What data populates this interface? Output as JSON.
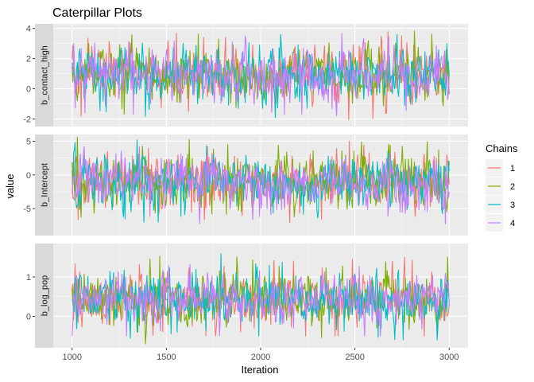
{
  "chart_data": {
    "type": "line",
    "title": "Caterpillar Plots",
    "xlabel": "Iteration",
    "ylabel": "value",
    "x_range": [
      1000,
      3000
    ],
    "xlim": [
      900,
      3100
    ],
    "x_ticks": [
      "1000",
      "1500",
      "2000",
      "2500",
      "3000"
    ],
    "grid": true,
    "legend": {
      "title": "Chains",
      "placement": "right",
      "entries": [
        {
          "label": "1",
          "color": "#F8766D"
        },
        {
          "label": "2",
          "color": "#7CAE00"
        },
        {
          "label": "3",
          "color": "#00BFC4"
        },
        {
          "label": "4",
          "color": "#C77CFF"
        }
      ]
    },
    "panels": [
      {
        "strip_label": "b_contact_high",
        "ylim": [
          -2.5,
          4.3
        ],
        "y_ticks": [
          -2,
          0,
          2,
          4
        ],
        "chain_stats": [
          {
            "chain": "1",
            "mean": 1.0,
            "sd": 0.85,
            "min": -2.2,
            "max": 4.1
          },
          {
            "chain": "2",
            "mean": 0.95,
            "sd": 0.85,
            "min": -2.2,
            "max": 3.9
          },
          {
            "chain": "3",
            "mean": 0.95,
            "sd": 0.85,
            "min": -1.9,
            "max": 3.6
          },
          {
            "chain": "4",
            "mean": 1.0,
            "sd": 0.8,
            "min": -1.8,
            "max": 3.7
          }
        ]
      },
      {
        "strip_label": "b_Intercept",
        "ylim": [
          -9.0,
          6.0
        ],
        "y_ticks": [
          -5,
          0,
          5
        ],
        "chain_stats": [
          {
            "chain": "1",
            "mean": -1.1,
            "sd": 1.9,
            "min": -7.5,
            "max": 5.0
          },
          {
            "chain": "2",
            "mean": -1.0,
            "sd": 1.9,
            "min": -7.8,
            "max": 5.6
          },
          {
            "chain": "3",
            "mean": -1.0,
            "sd": 1.9,
            "min": -7.0,
            "max": 5.2
          },
          {
            "chain": "4",
            "mean": -1.1,
            "sd": 1.8,
            "min": -8.2,
            "max": 4.2
          }
        ]
      },
      {
        "strip_label": "b_log_pop",
        "ylim": [
          -0.8,
          1.85
        ],
        "y_ticks": [
          0,
          1
        ],
        "chain_stats": [
          {
            "chain": "1",
            "mean": 0.43,
            "sd": 0.32,
            "min": -0.5,
            "max": 1.6
          },
          {
            "chain": "2",
            "mean": 0.42,
            "sd": 0.32,
            "min": -0.7,
            "max": 1.8
          },
          {
            "chain": "3",
            "mean": 0.43,
            "sd": 0.32,
            "min": -0.6,
            "max": 1.6
          },
          {
            "chain": "4",
            "mean": 0.43,
            "sd": 0.3,
            "min": -0.5,
            "max": 1.5
          }
        ]
      }
    ]
  }
}
